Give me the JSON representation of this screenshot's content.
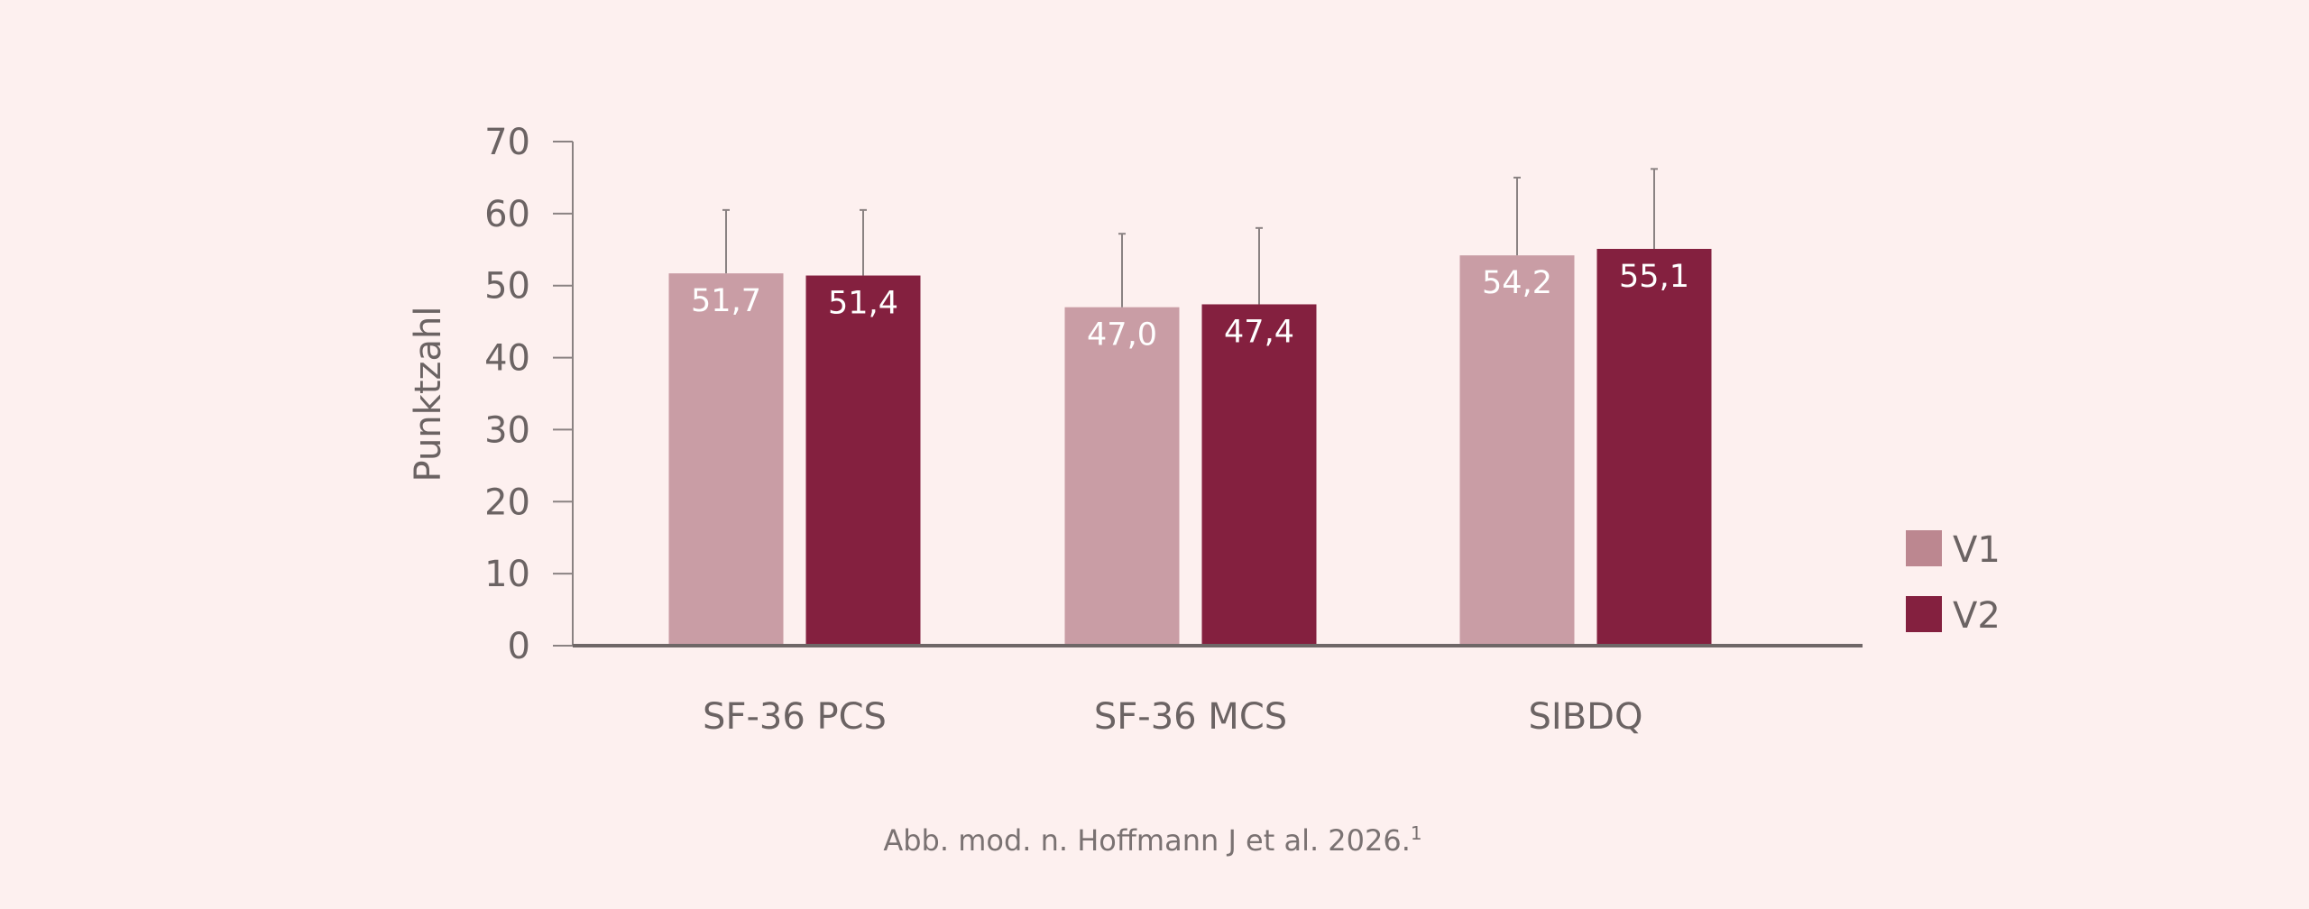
{
  "chart_data": {
    "type": "bar",
    "ylabel": "Punktzahl",
    "ylim": [
      0,
      70
    ],
    "yticks": [
      0,
      10,
      20,
      30,
      40,
      50,
      60,
      70
    ],
    "categories": [
      "SF-36 PCS",
      "SF-36 MCS",
      "SIBDQ"
    ],
    "series": [
      {
        "name": "V1",
        "color": "#c99da5",
        "values": [
          51.7,
          47.0,
          54.2
        ],
        "labels": [
          "51,7",
          "47,0",
          "54,2"
        ],
        "error_upper": [
          60.5,
          57.2,
          65.0
        ]
      },
      {
        "name": "V2",
        "color": "#84203f",
        "values": [
          51.4,
          47.4,
          55.1
        ],
        "labels": [
          "51,4",
          "47,4",
          "55,1"
        ],
        "error_upper": [
          60.5,
          58.0,
          66.2
        ]
      }
    ],
    "legend_position": "right",
    "legend_colors": [
      "#bc8790",
      "#84203f"
    ],
    "footnote": "Abb. mod. n. Hoffmann J et al. 2026.",
    "footnote_superscript": "1"
  }
}
